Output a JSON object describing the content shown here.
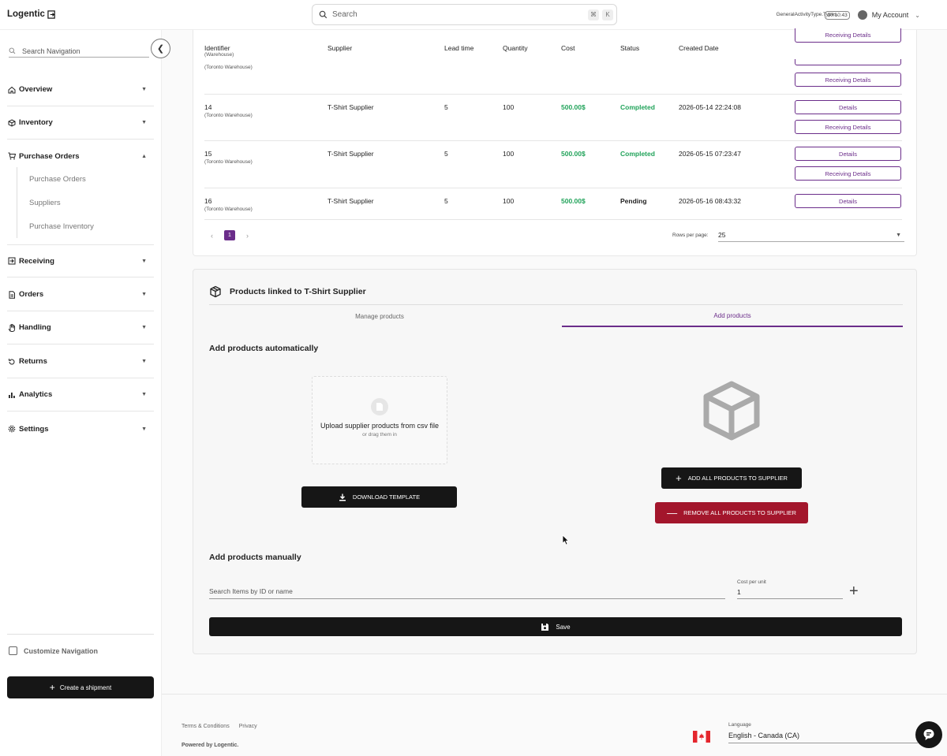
{
  "app": {
    "logo": "Logentic"
  },
  "search": {
    "placeholder": "Search",
    "kbd1": "⌘",
    "kbd2": "K"
  },
  "topright": {
    "activity_type": "GeneralActivityType.Types.",
    "timer": "00:10:43",
    "account": "My Account"
  },
  "sidebar": {
    "search_placeholder": "Search Navigation",
    "items": [
      {
        "label": "Overview",
        "icon": "home-icon"
      },
      {
        "label": "Inventory",
        "icon": "package-icon"
      },
      {
        "label": "Purchase Orders",
        "icon": "cart-icon"
      },
      {
        "label": "Receiving",
        "icon": "receiving-icon"
      },
      {
        "label": "Orders",
        "icon": "document-icon"
      },
      {
        "label": "Handling",
        "icon": "hand-icon"
      },
      {
        "label": "Returns",
        "icon": "returns-icon"
      },
      {
        "label": "Analytics",
        "icon": "bar-chart-icon"
      },
      {
        "label": "Settings",
        "icon": "gear-icon"
      }
    ],
    "sub_items": [
      "Purchase Orders",
      "Suppliers",
      "Purchase Inventory"
    ],
    "customize": "Customize Navigation",
    "create_shipment": "Create a shipment"
  },
  "table": {
    "headers": {
      "identifier": "Identifier",
      "identifier_sub": "(Warehouse)",
      "supplier": "Supplier",
      "lead_time": "Lead time",
      "quantity": "Quantity",
      "cost": "Cost",
      "status": "Status",
      "created": "Created Date"
    },
    "partial_row": {
      "warehouse": "(Toronto Warehouse)",
      "btn_top": "Receiving Details",
      "btn": "Receiving Details"
    },
    "rows": [
      {
        "id": "14",
        "warehouse": "(Toronto Warehouse)",
        "supplier": "T-Shirt Supplier",
        "lead": "5",
        "qty": "100",
        "cost": "500.00$",
        "status": "Completed",
        "date": "2026-05-14 22:24:08",
        "details": "Details",
        "receiving": "Receiving Details"
      },
      {
        "id": "15",
        "warehouse": "(Toronto Warehouse)",
        "supplier": "T-Shirt Supplier",
        "lead": "5",
        "qty": "100",
        "cost": "500.00$",
        "status": "Completed",
        "date": "2026-05-15 07:23:47",
        "details": "Details",
        "receiving": "Receiving Details"
      },
      {
        "id": "16",
        "warehouse": "(Toronto Warehouse)",
        "supplier": "T-Shirt Supplier",
        "lead": "5",
        "qty": "100",
        "cost": "500.00$",
        "status": "Pending",
        "date": "2026-05-16 08:43:32",
        "details": "Details"
      }
    ],
    "pager": {
      "prev": "‹",
      "page": "1",
      "next": "›"
    },
    "rows_per_page_label": "Rows per page:",
    "rows_per_page_value": "25"
  },
  "products": {
    "title": "Products linked to T-Shirt Supplier",
    "tab_manage": "Manage products",
    "tab_add": "Add products",
    "auto_heading": "Add products automatically",
    "upload_title": "Upload supplier products from csv file",
    "upload_sub": "or drag them in",
    "download_template": "DOWNLOAD TEMPLATE",
    "add_all": "ADD ALL PRODUCTS TO SUPPLIER",
    "remove_all": "REMOVE ALL PRODUCTS TO SUPPLIER",
    "manual_heading": "Add products manually",
    "item_search_placeholder": "Search Items by ID or name",
    "cost_label": "Cost per unit",
    "cost_value": "1",
    "save": "Save"
  },
  "footer": {
    "terms": "Terms & Conditions",
    "privacy": "Privacy",
    "powered": "Powered by Logentic.",
    "language_label": "Language",
    "language_value": "English - Canada (CA)"
  },
  "colors": {
    "accent": "#6b2d8a",
    "success": "#21a35a",
    "danger": "#a3162c",
    "dark": "#161616"
  }
}
